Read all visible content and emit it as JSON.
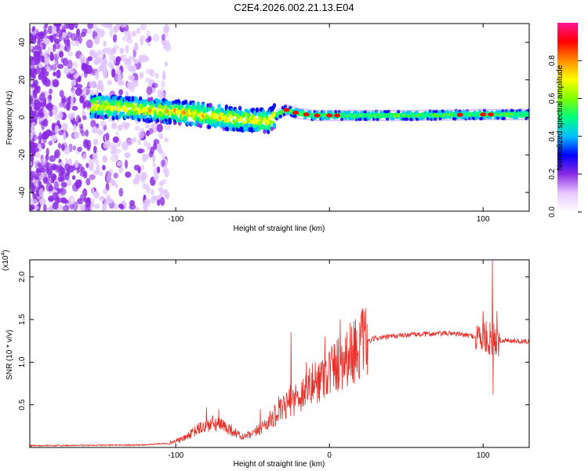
{
  "title": "C2E4.2026.002.21.13.E04",
  "chart_data": [
    {
      "type": "heatmap",
      "name": "spectrogram",
      "xlabel": "Height of straight line (km)",
      "ylabel": "Frequency (Hz)",
      "xlim": [
        -195,
        130
      ],
      "ylim": [
        -50,
        50
      ],
      "x_ticks": [
        -100,
        0,
        100
      ],
      "x_tick_labels": [
        "-100",
        "",
        "100"
      ],
      "y_ticks": [
        -40,
        -20,
        0,
        20,
        40
      ],
      "y_tick_labels": [
        "-40",
        "-20",
        "0",
        "20",
        "40"
      ],
      "ridge": [
        {
          "x": -150,
          "f": 6
        },
        {
          "x": -120,
          "f": 4
        },
        {
          "x": -100,
          "f": 3
        },
        {
          "x": -80,
          "f": 1
        },
        {
          "x": -60,
          "f": -1
        },
        {
          "x": -40,
          "f": -2
        },
        {
          "x": -33,
          "f": 2
        },
        {
          "x": -28,
          "f": 4
        },
        {
          "x": -20,
          "f": 2
        },
        {
          "x": -10,
          "f": 1
        },
        {
          "x": 0,
          "f": 1
        },
        {
          "x": 20,
          "f": 1
        },
        {
          "x": 50,
          "f": 1
        },
        {
          "x": 100,
          "f": 1.5
        },
        {
          "x": 130,
          "f": 1.5
        }
      ],
      "hotspots_x": [
        -28,
        -22,
        -15,
        -8,
        0,
        5,
        85,
        100,
        105
      ],
      "colorbar": {
        "label": "Normalized spectral amplitude",
        "range": [
          0,
          1
        ],
        "ticks": [
          0.0,
          0.2,
          0.4,
          0.6,
          0.8
        ],
        "tick_labels": [
          "0.0",
          "0.2",
          "0.4",
          "0.6",
          "0.8"
        ],
        "colors": [
          "#ffffff",
          "#e8c8ff",
          "#8a2be2",
          "#0000ff",
          "#00bfff",
          "#00ff7f",
          "#7fff00",
          "#ffff00",
          "#ff8c00",
          "#ff0000",
          "#ff1493"
        ]
      }
    },
    {
      "type": "line",
      "name": "snr",
      "xlabel": "Height of straight line (km)",
      "ylabel": "SNR (10 * v/v)",
      "multiplier_label": "(x10",
      "multiplier_exp": "4",
      "multiplier_close": ")",
      "xlim": [
        -195,
        130
      ],
      "ylim": [
        0,
        2.2
      ],
      "x_ticks": [
        -100,
        0,
        100
      ],
      "x_tick_labels": [
        "-100",
        "0",
        "100"
      ],
      "y_ticks": [
        0.5,
        1.0,
        1.5,
        2.0
      ],
      "y_tick_labels": [
        "0.5",
        "1.0",
        "1.5",
        "2.0"
      ],
      "color": "#e8302a",
      "envelope": [
        {
          "x": -195,
          "y": 0.02
        },
        {
          "x": -120,
          "y": 0.03
        },
        {
          "x": -105,
          "y": 0.05
        },
        {
          "x": -95,
          "y": 0.1
        },
        {
          "x": -85,
          "y": 0.22
        },
        {
          "x": -75,
          "y": 0.28
        },
        {
          "x": -65,
          "y": 0.22
        },
        {
          "x": -57,
          "y": 0.12
        },
        {
          "x": -50,
          "y": 0.15
        },
        {
          "x": -40,
          "y": 0.3
        },
        {
          "x": -30,
          "y": 0.45
        },
        {
          "x": -25,
          "y": 0.55
        },
        {
          "x": -20,
          "y": 0.6
        },
        {
          "x": -10,
          "y": 0.75
        },
        {
          "x": 0,
          "y": 0.9
        },
        {
          "x": 10,
          "y": 1.05
        },
        {
          "x": 20,
          "y": 1.2
        },
        {
          "x": 30,
          "y": 1.28
        },
        {
          "x": 50,
          "y": 1.32
        },
        {
          "x": 80,
          "y": 1.34
        },
        {
          "x": 95,
          "y": 1.3
        },
        {
          "x": 110,
          "y": 1.26
        },
        {
          "x": 130,
          "y": 1.24
        }
      ],
      "spikes": [
        {
          "x": -80,
          "y": 0.47
        },
        {
          "x": -72,
          "y": 0.45
        },
        {
          "x": -45,
          "y": 0.45
        },
        {
          "x": -33,
          "y": 0.6
        },
        {
          "x": -25,
          "y": 1.35
        },
        {
          "x": -15,
          "y": 1.0
        },
        {
          "x": -3,
          "y": 1.3
        },
        {
          "x": 7,
          "y": 1.5
        },
        {
          "x": 20,
          "y": 1.35
        },
        {
          "x": 100,
          "y": 1.6
        },
        {
          "x": 106,
          "y": 2.2
        },
        {
          "x": 106.5,
          "y": 0.62
        },
        {
          "x": 109,
          "y": 1.6
        }
      ]
    }
  ]
}
